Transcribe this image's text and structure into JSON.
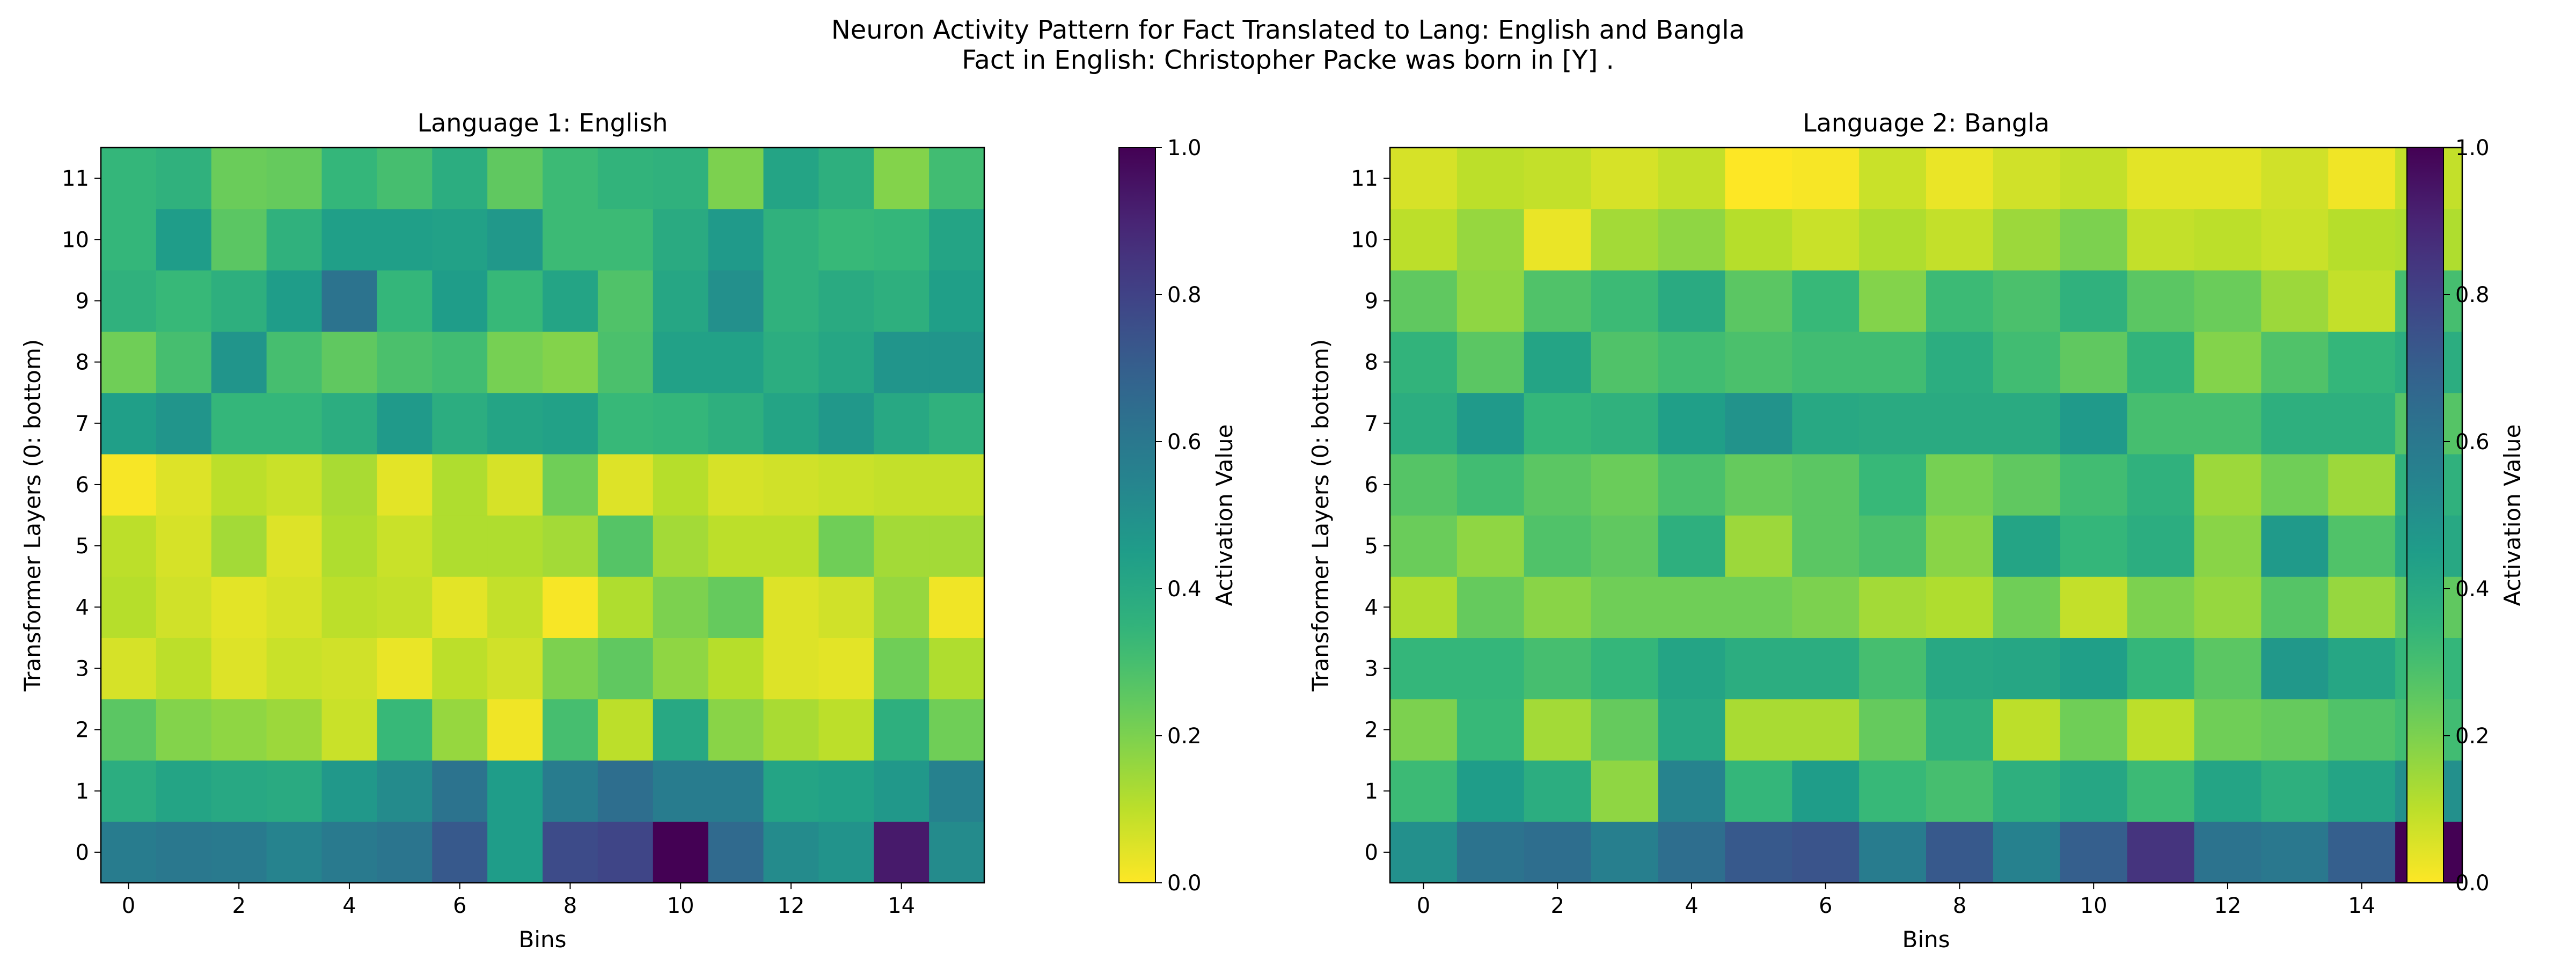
{
  "figure": {
    "title_line1": "Neuron Activity Pattern for Fact Translated to Lang: English and Bangla",
    "title_line2": "Fact in English: Christopher Packe was born in [Y] ."
  },
  "chart_data": [
    {
      "type": "heatmap",
      "title": "Language 1: English",
      "xlabel": "Bins",
      "ylabel": "Transformer Layers (0: bottom)",
      "colorbar_label": "Activation Value",
      "colormap": "viridis_r",
      "vmin": 0.0,
      "vmax": 1.0,
      "x_ticks": [
        0,
        2,
        4,
        6,
        8,
        10,
        12,
        14
      ],
      "y_ticks": [
        0,
        1,
        2,
        3,
        4,
        5,
        6,
        7,
        8,
        9,
        10,
        11
      ],
      "colorbar_ticks": [
        "0.0",
        "0.2",
        "0.4",
        "0.6",
        "0.8",
        "1.0"
      ],
      "bins": 16,
      "layers": 12,
      "values": [
        [
          0.58,
          0.6,
          0.59,
          0.55,
          0.59,
          0.61,
          0.72,
          0.45,
          0.77,
          0.79,
          1.0,
          0.66,
          0.52,
          0.49,
          0.93,
          0.52
        ],
        [
          0.38,
          0.42,
          0.4,
          0.39,
          0.47,
          0.52,
          0.62,
          0.45,
          0.58,
          0.64,
          0.58,
          0.58,
          0.42,
          0.43,
          0.47,
          0.56
        ],
        [
          0.26,
          0.19,
          0.17,
          0.15,
          0.08,
          0.33,
          0.16,
          0.02,
          0.3,
          0.1,
          0.4,
          0.18,
          0.13,
          0.1,
          0.37,
          0.22
        ],
        [
          0.06,
          0.1,
          0.05,
          0.08,
          0.07,
          0.03,
          0.1,
          0.07,
          0.2,
          0.25,
          0.17,
          0.11,
          0.05,
          0.04,
          0.22,
          0.12
        ],
        [
          0.11,
          0.07,
          0.04,
          0.06,
          0.1,
          0.09,
          0.04,
          0.09,
          0.01,
          0.12,
          0.2,
          0.24,
          0.05,
          0.07,
          0.16,
          0.02
        ],
        [
          0.1,
          0.06,
          0.14,
          0.05,
          0.12,
          0.08,
          0.12,
          0.12,
          0.14,
          0.27,
          0.14,
          0.1,
          0.1,
          0.22,
          0.14,
          0.14
        ],
        [
          0.01,
          0.05,
          0.1,
          0.08,
          0.13,
          0.04,
          0.12,
          0.06,
          0.22,
          0.05,
          0.11,
          0.06,
          0.07,
          0.08,
          0.09,
          0.09
        ],
        [
          0.44,
          0.48,
          0.34,
          0.34,
          0.38,
          0.46,
          0.38,
          0.42,
          0.43,
          0.33,
          0.34,
          0.37,
          0.42,
          0.47,
          0.4,
          0.36
        ],
        [
          0.22,
          0.3,
          0.48,
          0.3,
          0.25,
          0.29,
          0.31,
          0.21,
          0.19,
          0.29,
          0.43,
          0.43,
          0.38,
          0.41,
          0.48,
          0.48
        ],
        [
          0.36,
          0.33,
          0.37,
          0.45,
          0.62,
          0.34,
          0.45,
          0.33,
          0.42,
          0.28,
          0.41,
          0.5,
          0.36,
          0.39,
          0.37,
          0.44
        ],
        [
          0.34,
          0.45,
          0.26,
          0.36,
          0.44,
          0.44,
          0.43,
          0.47,
          0.32,
          0.32,
          0.39,
          0.46,
          0.36,
          0.33,
          0.34,
          0.42
        ],
        [
          0.34,
          0.36,
          0.23,
          0.24,
          0.34,
          0.3,
          0.38,
          0.25,
          0.32,
          0.35,
          0.36,
          0.2,
          0.42,
          0.37,
          0.19,
          0.31
        ]
      ]
    },
    {
      "type": "heatmap",
      "title": "Language 2: Bangla",
      "xlabel": "Bins",
      "ylabel": "Transformer Layers (0: bottom)",
      "colorbar_label": "Activation Value",
      "colormap": "viridis_r",
      "vmin": 0.0,
      "vmax": 1.0,
      "x_ticks": [
        0,
        2,
        4,
        6,
        8,
        10,
        12,
        14
      ],
      "y_ticks": [
        0,
        1,
        2,
        3,
        4,
        5,
        6,
        7,
        8,
        9,
        10,
        11
      ],
      "colorbar_ticks": [
        "0.0",
        "0.2",
        "0.4",
        "0.6",
        "0.8",
        "1.0"
      ],
      "bins": 16,
      "layers": 12,
      "values": [
        [
          0.5,
          0.62,
          0.64,
          0.57,
          0.64,
          0.72,
          0.74,
          0.58,
          0.72,
          0.56,
          0.7,
          0.85,
          0.62,
          0.6,
          0.7,
          1.0
        ],
        [
          0.32,
          0.45,
          0.38,
          0.17,
          0.55,
          0.34,
          0.45,
          0.33,
          0.3,
          0.37,
          0.41,
          0.32,
          0.42,
          0.37,
          0.42,
          0.5
        ],
        [
          0.2,
          0.33,
          0.14,
          0.24,
          0.4,
          0.13,
          0.13,
          0.24,
          0.36,
          0.1,
          0.22,
          0.1,
          0.22,
          0.24,
          0.28,
          0.31
        ],
        [
          0.34,
          0.34,
          0.3,
          0.34,
          0.42,
          0.38,
          0.38,
          0.3,
          0.4,
          0.41,
          0.44,
          0.34,
          0.26,
          0.47,
          0.41,
          0.34
        ],
        [
          0.12,
          0.24,
          0.18,
          0.22,
          0.22,
          0.22,
          0.2,
          0.14,
          0.12,
          0.22,
          0.09,
          0.2,
          0.16,
          0.27,
          0.16,
          0.25
        ],
        [
          0.23,
          0.17,
          0.28,
          0.25,
          0.37,
          0.15,
          0.26,
          0.29,
          0.18,
          0.42,
          0.34,
          0.38,
          0.18,
          0.46,
          0.28,
          0.4
        ],
        [
          0.27,
          0.31,
          0.26,
          0.23,
          0.29,
          0.24,
          0.26,
          0.33,
          0.21,
          0.25,
          0.31,
          0.36,
          0.15,
          0.22,
          0.15,
          0.36
        ],
        [
          0.38,
          0.46,
          0.34,
          0.36,
          0.44,
          0.49,
          0.4,
          0.39,
          0.39,
          0.39,
          0.46,
          0.3,
          0.3,
          0.37,
          0.37,
          0.27
        ],
        [
          0.35,
          0.26,
          0.42,
          0.28,
          0.31,
          0.29,
          0.31,
          0.31,
          0.38,
          0.31,
          0.25,
          0.35,
          0.19,
          0.28,
          0.34,
          0.38
        ],
        [
          0.25,
          0.17,
          0.28,
          0.32,
          0.39,
          0.26,
          0.33,
          0.19,
          0.32,
          0.29,
          0.36,
          0.26,
          0.23,
          0.15,
          0.09,
          0.3
        ],
        [
          0.1,
          0.16,
          0.03,
          0.14,
          0.17,
          0.11,
          0.08,
          0.12,
          0.09,
          0.15,
          0.2,
          0.09,
          0.1,
          0.08,
          0.11,
          0.12
        ],
        [
          0.06,
          0.1,
          0.09,
          0.06,
          0.09,
          0.0,
          0.01,
          0.08,
          0.03,
          0.07,
          0.09,
          0.04,
          0.04,
          0.07,
          0.02,
          0.09
        ]
      ]
    }
  ]
}
